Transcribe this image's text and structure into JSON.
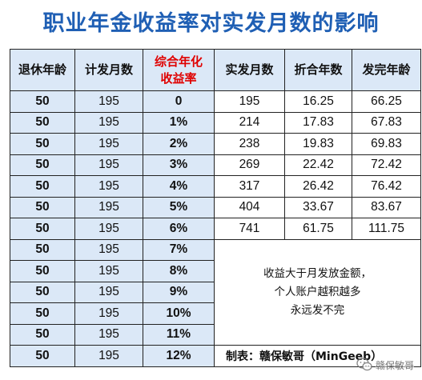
{
  "title": "职业年金收益率对实发月数的影响",
  "headers": [
    "退休年龄",
    "计发月数",
    "综合年化收益率",
    "实发月数",
    "折合年数",
    "发完年龄"
  ],
  "header_lines": {
    "col3_line1": "综合年化",
    "col3_line2": "收益率"
  },
  "rows": [
    {
      "age": "50",
      "months": "195",
      "rate": "0",
      "actual": "195",
      "years": "16.25",
      "end_age": "66.25"
    },
    {
      "age": "50",
      "months": "195",
      "rate": "1%",
      "actual": "214",
      "years": "17.83",
      "end_age": "67.83"
    },
    {
      "age": "50",
      "months": "195",
      "rate": "2%",
      "actual": "238",
      "years": "19.83",
      "end_age": "69.83"
    },
    {
      "age": "50",
      "months": "195",
      "rate": "3%",
      "actual": "269",
      "years": "22.42",
      "end_age": "72.42"
    },
    {
      "age": "50",
      "months": "195",
      "rate": "4%",
      "actual": "317",
      "years": "26.42",
      "end_age": "76.42"
    },
    {
      "age": "50",
      "months": "195",
      "rate": "5%",
      "actual": "404",
      "years": "33.67",
      "end_age": "83.67"
    },
    {
      "age": "50",
      "months": "195",
      "rate": "6%",
      "actual": "741",
      "years": "61.75",
      "end_age": "111.75"
    },
    {
      "age": "50",
      "months": "195",
      "rate": "7%"
    },
    {
      "age": "50",
      "months": "195",
      "rate": "8%"
    },
    {
      "age": "50",
      "months": "195",
      "rate": "9%"
    },
    {
      "age": "50",
      "months": "195",
      "rate": "10%"
    },
    {
      "age": "50",
      "months": "195",
      "rate": "11%"
    },
    {
      "age": "50",
      "months": "195",
      "rate": "12%"
    }
  ],
  "note": {
    "line1": "收益大于月发放金额，",
    "line2": "个人账户越积越多",
    "line3": "永远发不完"
  },
  "credit": "制表：赣保敏哥（MinGeeb）",
  "watermark": {
    "text": "赣保敏哥",
    "icon": "wechat-icon"
  },
  "colors": {
    "title": "#1f5fb4",
    "header_bg": "#dbe8f7",
    "highlight_header": "#e00000",
    "grid": "#222222"
  }
}
